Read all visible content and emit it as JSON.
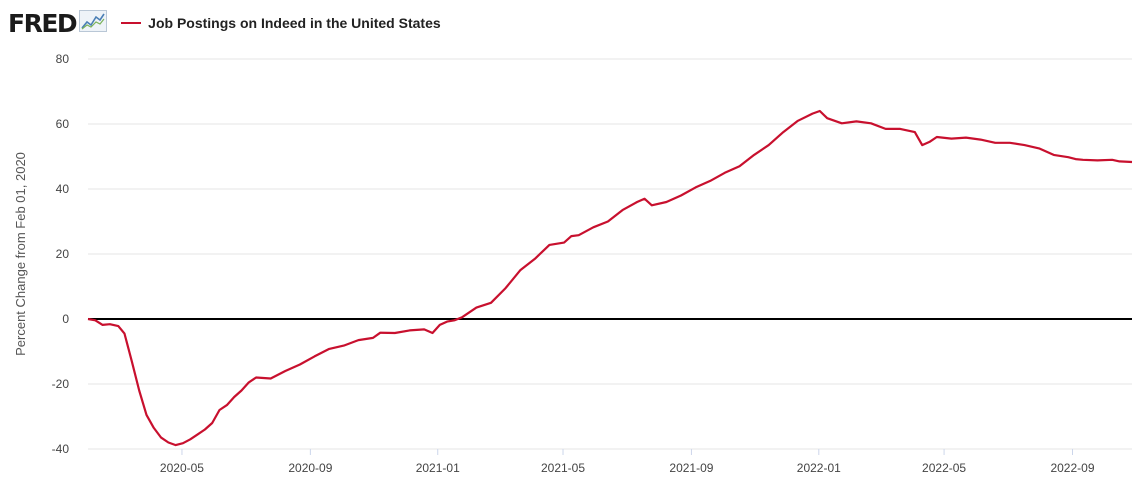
{
  "header": {
    "logo_text": "FRED",
    "logo_icon": "trend-chart-icon",
    "series_title": "Job Postings on Indeed in the United States"
  },
  "colors": {
    "series": "#c8102e",
    "zero_line": "#000000",
    "grid": "#e6e6e6"
  },
  "chart_data": {
    "type": "line",
    "title": "Job Postings on Indeed in the United States",
    "ylabel": "Percent Change from Feb 01, 2020",
    "xlabel": "",
    "ylim": [
      -40,
      80
    ],
    "yticks": [
      80,
      60,
      40,
      20,
      0,
      -20,
      -40
    ],
    "xticks": [
      "2020-05",
      "2020-09",
      "2021-01",
      "2021-05",
      "2021-09",
      "2022-01",
      "2022-05",
      "2022-09"
    ],
    "xlim": [
      "2020-02-01",
      "2022-10-28"
    ],
    "grid": "horizontal",
    "reference_line": 0,
    "series": [
      {
        "values": [
          [
            "2020-02-01",
            0
          ],
          [
            "2020-02-08",
            -0.4
          ],
          [
            "2020-02-15",
            -1.8
          ],
          [
            "2020-02-22",
            -1.6
          ],
          [
            "2020-03-01",
            -2.2
          ],
          [
            "2020-03-07",
            -4.5
          ],
          [
            "2020-03-14",
            -13
          ],
          [
            "2020-03-21",
            -22
          ],
          [
            "2020-03-28",
            -29.5
          ],
          [
            "2020-04-04",
            -33.5
          ],
          [
            "2020-04-11",
            -36.5
          ],
          [
            "2020-04-18",
            -38
          ],
          [
            "2020-04-25",
            -38.8
          ],
          [
            "2020-05-02",
            -38.2
          ],
          [
            "2020-05-09",
            -37
          ],
          [
            "2020-05-16",
            -35.5
          ],
          [
            "2020-05-23",
            -34
          ],
          [
            "2020-05-30",
            -32
          ],
          [
            "2020-06-06",
            -28
          ],
          [
            "2020-06-13",
            -26.5
          ],
          [
            "2020-06-20",
            -24
          ],
          [
            "2020-06-27",
            -22
          ],
          [
            "2020-07-04",
            -19.5
          ],
          [
            "2020-07-11",
            -18
          ],
          [
            "2020-07-25",
            -18.3
          ],
          [
            "2020-08-08",
            -16
          ],
          [
            "2020-08-22",
            -14
          ],
          [
            "2020-09-05",
            -11.5
          ],
          [
            "2020-09-19",
            -9.2
          ],
          [
            "2020-10-03",
            -8.2
          ],
          [
            "2020-10-17",
            -6.5
          ],
          [
            "2020-10-31",
            -5.8
          ],
          [
            "2020-11-07",
            -4.2
          ],
          [
            "2020-11-21",
            -4.3
          ],
          [
            "2020-12-05",
            -3.5
          ],
          [
            "2020-12-19",
            -3.2
          ],
          [
            "2020-12-27",
            -4.3
          ],
          [
            "2021-01-03",
            -1.8
          ],
          [
            "2021-01-10",
            -0.8
          ],
          [
            "2021-01-17",
            -0.4
          ],
          [
            "2021-01-24",
            0.5
          ],
          [
            "2021-02-07",
            3.5
          ],
          [
            "2021-02-21",
            5
          ],
          [
            "2021-03-07",
            9.5
          ],
          [
            "2021-03-21",
            15
          ],
          [
            "2021-04-04",
            18.5
          ],
          [
            "2021-04-18",
            22.8
          ],
          [
            "2021-05-02",
            23.5
          ],
          [
            "2021-05-09",
            25.5
          ],
          [
            "2021-05-16",
            25.8
          ],
          [
            "2021-05-30",
            28.2
          ],
          [
            "2021-06-13",
            30
          ],
          [
            "2021-06-27",
            33.5
          ],
          [
            "2021-07-11",
            36
          ],
          [
            "2021-07-18",
            37
          ],
          [
            "2021-07-25",
            35
          ],
          [
            "2021-08-08",
            36
          ],
          [
            "2021-08-22",
            38
          ],
          [
            "2021-09-05",
            40.5
          ],
          [
            "2021-09-19",
            42.5
          ],
          [
            "2021-10-03",
            45
          ],
          [
            "2021-10-17",
            47
          ],
          [
            "2021-10-31",
            50.5
          ],
          [
            "2021-11-14",
            53.5
          ],
          [
            "2021-11-28",
            57.5
          ],
          [
            "2021-12-12",
            61
          ],
          [
            "2021-12-26",
            63.2
          ],
          [
            "2022-01-02",
            64
          ],
          [
            "2022-01-09",
            61.8
          ],
          [
            "2022-01-23",
            60.2
          ],
          [
            "2022-02-06",
            60.8
          ],
          [
            "2022-02-20",
            60.2
          ],
          [
            "2022-03-06",
            58.5
          ],
          [
            "2022-03-20",
            58.5
          ],
          [
            "2022-04-03",
            57.5
          ],
          [
            "2022-04-10",
            53.5
          ],
          [
            "2022-04-17",
            54.5
          ],
          [
            "2022-04-24",
            56
          ],
          [
            "2022-05-08",
            55.5
          ],
          [
            "2022-05-22",
            55.8
          ],
          [
            "2022-06-05",
            55.2
          ],
          [
            "2022-06-19",
            54.2
          ],
          [
            "2022-07-03",
            54.2
          ],
          [
            "2022-07-17",
            53.5
          ],
          [
            "2022-07-31",
            52.5
          ],
          [
            "2022-08-14",
            50.5
          ],
          [
            "2022-08-28",
            49.8
          ],
          [
            "2022-09-04",
            49.2
          ],
          [
            "2022-09-11",
            49
          ],
          [
            "2022-09-25",
            48.8
          ],
          [
            "2022-10-09",
            49
          ],
          [
            "2022-10-16",
            48.5
          ],
          [
            "2022-10-28",
            48.3
          ]
        ]
      }
    ]
  }
}
